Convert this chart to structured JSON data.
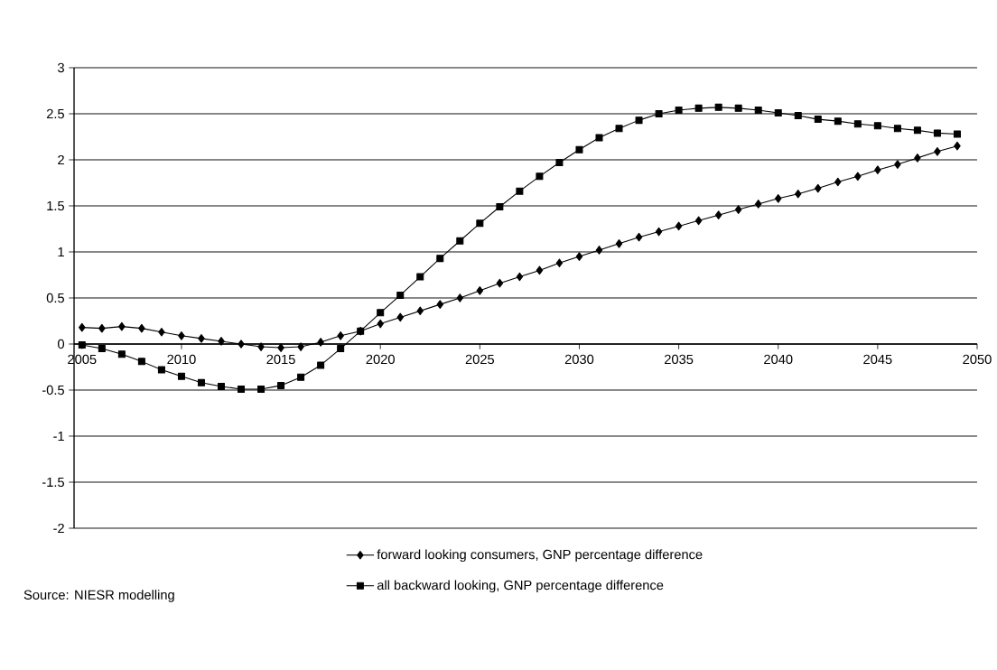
{
  "chart_data": {
    "type": "line",
    "x": [
      2005,
      2006,
      2007,
      2008,
      2009,
      2010,
      2011,
      2012,
      2013,
      2014,
      2015,
      2016,
      2017,
      2018,
      2019,
      2020,
      2021,
      2022,
      2023,
      2024,
      2025,
      2026,
      2027,
      2028,
      2029,
      2030,
      2031,
      2032,
      2033,
      2034,
      2035,
      2036,
      2037,
      2038,
      2039,
      2040,
      2041,
      2042,
      2043,
      2044,
      2045,
      2046,
      2047,
      2048,
      2049
    ],
    "xlim": [
      2004.6,
      2050
    ],
    "xticks": [
      2005,
      2010,
      2015,
      2020,
      2025,
      2030,
      2035,
      2040,
      2045,
      2050
    ],
    "ylim": [
      -2,
      3
    ],
    "yticks": [
      -2,
      -1.5,
      -1,
      -0.5,
      0,
      0.5,
      1,
      1.5,
      2,
      2.5,
      3
    ],
    "grid": "y",
    "legend": "bottom",
    "line_style": "solid",
    "series": [
      {
        "name": "forward looking consumers, GNP percentage difference",
        "color": "#000000",
        "marker": "diamond",
        "values": [
          0.18,
          0.17,
          0.19,
          0.17,
          0.13,
          0.09,
          0.06,
          0.03,
          0.0,
          -0.03,
          -0.04,
          -0.03,
          0.02,
          0.09,
          0.14,
          0.22,
          0.29,
          0.36,
          0.43,
          0.5,
          0.58,
          0.66,
          0.73,
          0.8,
          0.88,
          0.95,
          1.02,
          1.09,
          1.16,
          1.22,
          1.28,
          1.34,
          1.4,
          1.46,
          1.52,
          1.58,
          1.63,
          1.69,
          1.76,
          1.82,
          1.89,
          1.95,
          2.02,
          2.09,
          2.15
        ]
      },
      {
        "name": "all backward looking, GNP percentage difference",
        "color": "#000000",
        "marker": "square",
        "values": [
          -0.01,
          -0.05,
          -0.11,
          -0.19,
          -0.28,
          -0.35,
          -0.42,
          -0.46,
          -0.49,
          -0.49,
          -0.45,
          -0.36,
          -0.23,
          -0.05,
          0.14,
          0.34,
          0.53,
          0.73,
          0.93,
          1.12,
          1.31,
          1.49,
          1.66,
          1.82,
          1.97,
          2.11,
          2.24,
          2.34,
          2.43,
          2.5,
          2.54,
          2.56,
          2.57,
          2.56,
          2.54,
          2.51,
          2.48,
          2.44,
          2.42,
          2.39,
          2.37,
          2.34,
          2.32,
          2.29,
          2.28
        ]
      }
    ],
    "annotations": [
      "Source: NIESR modelling"
    ]
  }
}
